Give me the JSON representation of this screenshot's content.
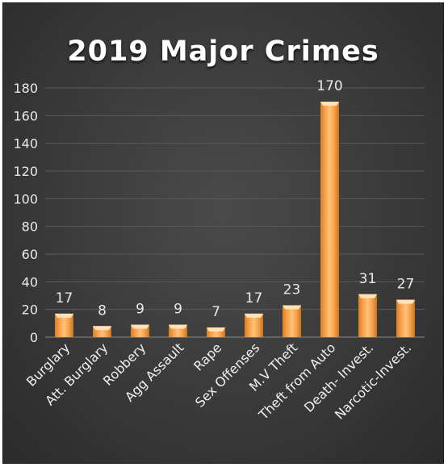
{
  "chart_data": {
    "type": "bar",
    "title": "2019 Major Crimes",
    "categories": [
      "Burglary",
      "Att. Burglary",
      "Robbery",
      "Agg Assault",
      "Rape",
      "Sex Offenses",
      "M.V Theft",
      "Theft from Auto",
      "Death- Invest.",
      "Narcotic-Invest."
    ],
    "values": [
      17,
      8,
      9,
      9,
      7,
      17,
      23,
      170,
      31,
      27
    ],
    "ylim": [
      0,
      180
    ],
    "yticks": [
      0,
      20,
      40,
      60,
      80,
      100,
      120,
      140,
      160,
      180
    ],
    "grid": true,
    "legend": "none",
    "colors": {
      "bar_light": "#ffd6a0",
      "bar": "#f7a04a",
      "bar_dark": "#c8741f",
      "background": "#3d3d3d",
      "grid": "#5a5a5a"
    }
  }
}
